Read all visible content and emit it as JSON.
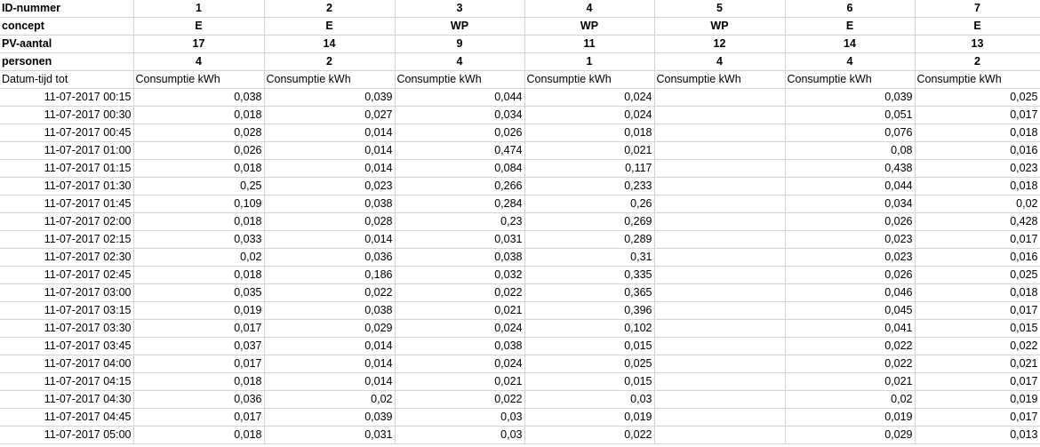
{
  "columns": [
    {
      "id": "1",
      "concept": "E",
      "pv": "17",
      "personen": "4",
      "unit": "Consumptie kWh"
    },
    {
      "id": "2",
      "concept": "E",
      "pv": "14",
      "personen": "2",
      "unit": "Consumptie kWh"
    },
    {
      "id": "3",
      "concept": "WP",
      "pv": "9",
      "personen": "4",
      "unit": "Consumptie kWh"
    },
    {
      "id": "4",
      "concept": "WP",
      "pv": "11",
      "personen": "1",
      "unit": "Consumptie kWh"
    },
    {
      "id": "5",
      "concept": "WP",
      "pv": "12",
      "personen": "4",
      "unit": "Consumptie kWh"
    },
    {
      "id": "6",
      "concept": "E",
      "pv": "14",
      "personen": "4",
      "unit": "Consumptie kWh"
    },
    {
      "id": "7",
      "concept": "E",
      "pv": "13",
      "personen": "2",
      "unit": "Consumptie kWh"
    }
  ],
  "labels": {
    "id": "ID-nummer",
    "concept": "concept",
    "pv": "PV-aantal",
    "personen": "personen",
    "datetime": "Datum-tijd tot"
  },
  "rows": [
    {
      "t": "11-07-2017 00:15",
      "v": [
        "0,038",
        "0,039",
        "0,044",
        "0,024",
        "",
        "0,039",
        "0,025"
      ]
    },
    {
      "t": "11-07-2017 00:30",
      "v": [
        "0,018",
        "0,027",
        "0,034",
        "0,024",
        "",
        "0,051",
        "0,017"
      ]
    },
    {
      "t": "11-07-2017 00:45",
      "v": [
        "0,028",
        "0,014",
        "0,026",
        "0,018",
        "",
        "0,076",
        "0,018"
      ]
    },
    {
      "t": "11-07-2017 01:00",
      "v": [
        "0,026",
        "0,014",
        "0,474",
        "0,021",
        "",
        "0,08",
        "0,016"
      ]
    },
    {
      "t": "11-07-2017 01:15",
      "v": [
        "0,018",
        "0,014",
        "0,084",
        "0,117",
        "",
        "0,438",
        "0,023"
      ]
    },
    {
      "t": "11-07-2017 01:30",
      "v": [
        "0,25",
        "0,023",
        "0,266",
        "0,233",
        "",
        "0,044",
        "0,018"
      ]
    },
    {
      "t": "11-07-2017 01:45",
      "v": [
        "0,109",
        "0,038",
        "0,284",
        "0,26",
        "",
        "0,034",
        "0,02"
      ]
    },
    {
      "t": "11-07-2017 02:00",
      "v": [
        "0,018",
        "0,028",
        "0,23",
        "0,269",
        "",
        "0,026",
        "0,428"
      ]
    },
    {
      "t": "11-07-2017 02:15",
      "v": [
        "0,033",
        "0,014",
        "0,031",
        "0,289",
        "",
        "0,023",
        "0,017"
      ]
    },
    {
      "t": "11-07-2017 02:30",
      "v": [
        "0,02",
        "0,036",
        "0,038",
        "0,31",
        "",
        "0,023",
        "0,016"
      ]
    },
    {
      "t": "11-07-2017 02:45",
      "v": [
        "0,018",
        "0,186",
        "0,032",
        "0,335",
        "",
        "0,026",
        "0,025"
      ]
    },
    {
      "t": "11-07-2017 03:00",
      "v": [
        "0,035",
        "0,022",
        "0,022",
        "0,365",
        "",
        "0,046",
        "0,018"
      ]
    },
    {
      "t": "11-07-2017 03:15",
      "v": [
        "0,019",
        "0,038",
        "0,021",
        "0,396",
        "",
        "0,045",
        "0,017"
      ]
    },
    {
      "t": "11-07-2017 03:30",
      "v": [
        "0,017",
        "0,029",
        "0,024",
        "0,102",
        "",
        "0,041",
        "0,015"
      ]
    },
    {
      "t": "11-07-2017 03:45",
      "v": [
        "0,037",
        "0,014",
        "0,038",
        "0,015",
        "",
        "0,022",
        "0,022"
      ]
    },
    {
      "t": "11-07-2017 04:00",
      "v": [
        "0,017",
        "0,014",
        "0,024",
        "0,025",
        "",
        "0,022",
        "0,021"
      ]
    },
    {
      "t": "11-07-2017 04:15",
      "v": [
        "0,018",
        "0,014",
        "0,021",
        "0,015",
        "",
        "0,021",
        "0,017"
      ]
    },
    {
      "t": "11-07-2017 04:30",
      "v": [
        "0,036",
        "0,02",
        "0,022",
        "0,03",
        "",
        "0,02",
        "0,019"
      ]
    },
    {
      "t": "11-07-2017 04:45",
      "v": [
        "0,017",
        "0,039",
        "0,03",
        "0,019",
        "",
        "0,019",
        "0,017"
      ]
    },
    {
      "t": "11-07-2017 05:00",
      "v": [
        "0,018",
        "0,031",
        "0,03",
        "0,022",
        "",
        "0,029",
        "0,013"
      ]
    }
  ]
}
